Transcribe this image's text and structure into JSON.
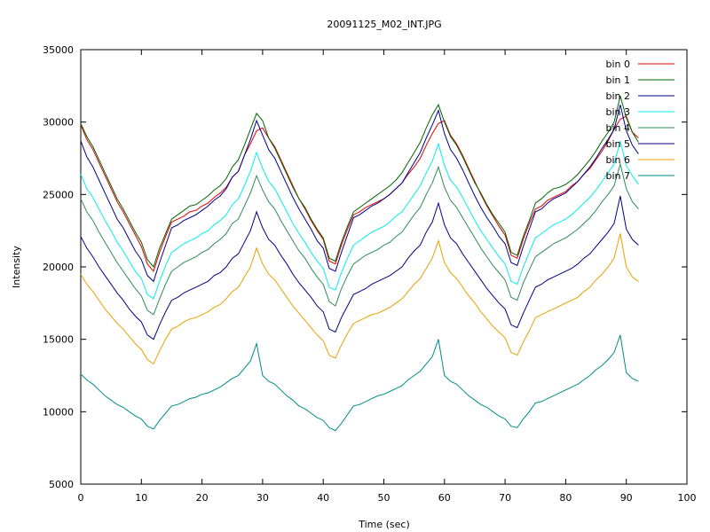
{
  "chart_data": {
    "type": "line",
    "title": "20091125_M02_INT.JPG",
    "xlabel": "Time (sec)",
    "ylabel": "Intensity",
    "xlim": [
      0,
      100
    ],
    "ylim": [
      5000,
      35000
    ],
    "xticks": [
      0,
      10,
      20,
      30,
      40,
      50,
      60,
      70,
      80,
      90,
      100
    ],
    "yticks": [
      5000,
      10000,
      15000,
      20000,
      25000,
      30000,
      35000
    ],
    "grid": false,
    "legend_position": "top-right",
    "x": [
      0,
      1,
      2,
      3,
      4,
      5,
      6,
      7,
      8,
      9,
      10,
      11,
      12,
      13,
      14,
      15,
      16,
      17,
      18,
      19,
      20,
      21,
      22,
      23,
      24,
      25,
      26,
      27,
      28,
      29,
      30,
      31,
      32,
      33,
      34,
      35,
      36,
      37,
      38,
      39,
      40,
      41,
      42,
      43,
      44,
      45,
      46,
      47,
      48,
      49,
      50,
      51,
      52,
      53,
      54,
      55,
      56,
      57,
      58,
      59,
      60,
      61,
      62,
      63,
      64,
      65,
      66,
      67,
      68,
      69,
      70,
      71,
      72,
      73,
      74,
      75,
      76,
      77,
      78,
      79,
      80,
      81,
      82,
      83,
      84,
      85,
      86,
      87,
      88,
      89,
      90,
      91,
      92
    ],
    "series": [
      {
        "name": "bin 0",
        "color": "#e00000",
        "values": [
          29800,
          28800,
          28100,
          27200,
          26300,
          25400,
          24500,
          23800,
          23000,
          22200,
          21400,
          20200,
          19700,
          21000,
          22100,
          23100,
          23300,
          23500,
          23800,
          23900,
          24200,
          24400,
          24800,
          25100,
          25500,
          26200,
          26600,
          27700,
          28500,
          29400,
          29600,
          28900,
          28300,
          27400,
          26500,
          25600,
          24700,
          24000,
          23200,
          22500,
          21900,
          20400,
          20200,
          21500,
          22600,
          23600,
          23800,
          24100,
          24300,
          24500,
          24700,
          25000,
          25400,
          25800,
          26400,
          26900,
          27500,
          28400,
          29200,
          29900,
          30100,
          29100,
          28500,
          27700,
          26800,
          25900,
          25000,
          24200,
          23500,
          22800,
          22200,
          20800,
          20600,
          21900,
          23000,
          24000,
          24200,
          24600,
          24800,
          25000,
          25200,
          25600,
          25900,
          26400,
          26800,
          27400,
          28000,
          28700,
          29500,
          30200,
          30400,
          29300,
          28900
        ]
      },
      {
        "name": "bin 1",
        "color": "#006400",
        "values": [
          29900,
          29000,
          28300,
          27400,
          26500,
          25600,
          24700,
          24000,
          23200,
          22400,
          21700,
          20500,
          20000,
          21300,
          22300,
          23300,
          23600,
          23900,
          24200,
          24300,
          24600,
          24900,
          25300,
          25600,
          26100,
          26900,
          27400,
          28400,
          29500,
          30600,
          30100,
          28900,
          28200,
          27300,
          26400,
          25500,
          24700,
          24100,
          23300,
          22600,
          22000,
          20600,
          20400,
          21700,
          22800,
          23800,
          24100,
          24400,
          24700,
          25000,
          25300,
          25600,
          26000,
          26500,
          27200,
          27900,
          28600,
          29600,
          30500,
          31200,
          30000,
          29000,
          28400,
          27600,
          26700,
          25800,
          25100,
          24300,
          23600,
          23000,
          22400,
          21000,
          20800,
          22100,
          23200,
          24400,
          24700,
          25100,
          25400,
          25500,
          25700,
          26000,
          26400,
          26900,
          27400,
          28000,
          28700,
          29300,
          30000,
          31800,
          30300,
          29300,
          28600
        ]
      },
      {
        "name": "bin 2",
        "color": "#00008b",
        "values": [
          28700,
          27600,
          26900,
          26000,
          25100,
          24200,
          23300,
          22700,
          21900,
          21100,
          20500,
          19400,
          19000,
          20300,
          21500,
          22700,
          22900,
          23200,
          23400,
          23600,
          23900,
          24200,
          24600,
          24900,
          25400,
          26200,
          26600,
          27700,
          28800,
          30100,
          29100,
          28100,
          27500,
          26600,
          25700,
          24800,
          24000,
          23300,
          22600,
          21800,
          21300,
          19900,
          19700,
          21000,
          22200,
          23400,
          23600,
          23900,
          24200,
          24400,
          24700,
          25000,
          25400,
          25800,
          26500,
          27200,
          27900,
          28900,
          29800,
          30800,
          29200,
          28100,
          27500,
          26700,
          25800,
          24900,
          24100,
          23400,
          22800,
          22100,
          21600,
          20300,
          20100,
          21400,
          22600,
          23800,
          24000,
          24400,
          24700,
          24900,
          25100,
          25500,
          25900,
          26400,
          26900,
          27500,
          28200,
          28800,
          29500,
          31200,
          29400,
          28400,
          27800
        ]
      },
      {
        "name": "bin 3",
        "color": "#00eeee",
        "values": [
          26400,
          25400,
          24800,
          24000,
          23200,
          22500,
          21700,
          21100,
          20400,
          19700,
          19200,
          18100,
          17800,
          19000,
          20100,
          21000,
          21300,
          21600,
          21800,
          22000,
          22300,
          22500,
          22900,
          23200,
          23600,
          24300,
          24700,
          25600,
          26600,
          27900,
          26800,
          25900,
          25400,
          24600,
          23800,
          23000,
          22300,
          21700,
          21000,
          20400,
          19900,
          18600,
          18400,
          19600,
          20600,
          21500,
          21800,
          22100,
          22400,
          22600,
          22800,
          23100,
          23500,
          23800,
          24400,
          25000,
          25600,
          26500,
          27300,
          28500,
          27000,
          26000,
          25500,
          24800,
          24000,
          23200,
          22500,
          21900,
          21300,
          20700,
          20200,
          19000,
          18800,
          20000,
          21000,
          22000,
          22300,
          22600,
          22900,
          23100,
          23300,
          23600,
          24000,
          24400,
          24800,
          25300,
          25900,
          26500,
          27100,
          28700,
          27000,
          26300,
          25700
        ]
      },
      {
        "name": "bin 4",
        "color": "#2e8b57",
        "values": [
          24700,
          23800,
          23200,
          22400,
          21700,
          21000,
          20300,
          19700,
          19100,
          18500,
          18000,
          17000,
          16700,
          17800,
          18800,
          19700,
          20000,
          20300,
          20500,
          20700,
          21000,
          21200,
          21600,
          21900,
          22300,
          23000,
          23300,
          24200,
          25100,
          26300,
          25300,
          24500,
          24000,
          23200,
          22500,
          21800,
          21100,
          20600,
          19900,
          19300,
          18800,
          17600,
          17300,
          18500,
          19400,
          20200,
          20500,
          20800,
          21000,
          21200,
          21500,
          21700,
          22100,
          22400,
          23000,
          23600,
          24100,
          25000,
          25800,
          26900,
          25500,
          24600,
          24100,
          23400,
          22700,
          22000,
          21300,
          20700,
          20100,
          19600,
          19100,
          17900,
          17700,
          18900,
          19800,
          20700,
          21000,
          21300,
          21600,
          21800,
          22000,
          22300,
          22600,
          23000,
          23400,
          23900,
          24500,
          25000,
          25600,
          27100,
          25400,
          24500,
          24000
        ]
      },
      {
        "name": "bin 5",
        "color": "#000080",
        "values": [
          22100,
          21300,
          20700,
          20000,
          19400,
          18800,
          18200,
          17700,
          17100,
          16600,
          16200,
          15300,
          15000,
          16000,
          16900,
          17700,
          17900,
          18200,
          18400,
          18600,
          18800,
          19000,
          19400,
          19600,
          20000,
          20600,
          20900,
          21700,
          22500,
          23800,
          22700,
          21900,
          21500,
          20800,
          20200,
          19500,
          18900,
          18400,
          17900,
          17300,
          16900,
          15700,
          15500,
          16500,
          17300,
          18100,
          18300,
          18500,
          18800,
          19000,
          19200,
          19400,
          19700,
          20000,
          20600,
          21100,
          21500,
          22400,
          23100,
          24400,
          22900,
          22000,
          21600,
          20900,
          20300,
          19700,
          19100,
          18500,
          18000,
          17500,
          17100,
          16000,
          15800,
          16800,
          17700,
          18600,
          18800,
          19100,
          19300,
          19500,
          19700,
          19900,
          20200,
          20600,
          20900,
          21400,
          21900,
          22400,
          23000,
          24900,
          22600,
          21900,
          21500
        ]
      },
      {
        "name": "bin 6",
        "color": "#e8a000",
        "values": [
          19500,
          18800,
          18300,
          17700,
          17100,
          16600,
          16100,
          15700,
          15200,
          14700,
          14300,
          13600,
          13300,
          14200,
          15000,
          15700,
          15900,
          16200,
          16400,
          16500,
          16700,
          16900,
          17200,
          17400,
          17800,
          18300,
          18600,
          19300,
          20000,
          21300,
          20200,
          19500,
          19100,
          18500,
          17900,
          17300,
          16800,
          16300,
          15800,
          15300,
          14900,
          13900,
          13700,
          14600,
          15400,
          16100,
          16300,
          16500,
          16700,
          16800,
          17000,
          17200,
          17500,
          17800,
          18300,
          18800,
          19200,
          19900,
          20600,
          21800,
          20300,
          19600,
          19200,
          18600,
          18000,
          17500,
          16900,
          16400,
          15900,
          15500,
          15100,
          14100,
          13900,
          14800,
          15600,
          16500,
          16700,
          16900,
          17100,
          17300,
          17500,
          17700,
          17900,
          18300,
          18600,
          19100,
          19500,
          20000,
          20600,
          22300,
          20000,
          19300,
          19000
        ]
      },
      {
        "name": "bin 7",
        "color": "#008b8b",
        "values": [
          12600,
          12200,
          11900,
          11500,
          11100,
          10800,
          10500,
          10300,
          10000,
          9700,
          9500,
          9000,
          8800,
          9400,
          9900,
          10400,
          10500,
          10700,
          10900,
          11000,
          11200,
          11300,
          11500,
          11700,
          12000,
          12300,
          12500,
          13000,
          13500,
          14700,
          12500,
          12100,
          11900,
          11500,
          11100,
          10800,
          10400,
          10200,
          9900,
          9600,
          9400,
          8900,
          8700,
          9200,
          9800,
          10400,
          10500,
          10700,
          10900,
          11100,
          11200,
          11400,
          11600,
          11800,
          12200,
          12500,
          12800,
          13300,
          13800,
          15000,
          12500,
          12100,
          11900,
          11500,
          11100,
          10800,
          10500,
          10300,
          10000,
          9700,
          9500,
          9000,
          8900,
          9500,
          10000,
          10600,
          10700,
          10900,
          11100,
          11300,
          11500,
          11700,
          11900,
          12200,
          12500,
          12900,
          13200,
          13600,
          14100,
          15300,
          12700,
          12300,
          12100
        ]
      }
    ]
  }
}
